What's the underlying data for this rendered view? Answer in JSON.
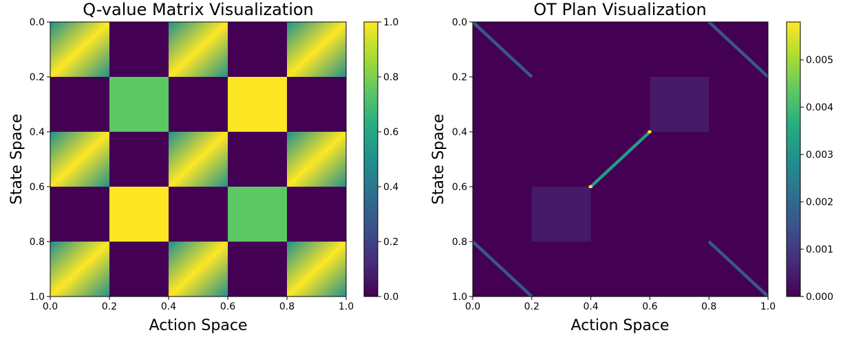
{
  "chart_data": [
    {
      "type": "heatmap",
      "title": "Q-value Matrix Visualization",
      "xlabel": "Action Space",
      "ylabel": "State Space",
      "xlim": [
        0.0,
        1.0
      ],
      "ylim": [
        1.0,
        0.0
      ],
      "xticks": [
        "0.0",
        "0.2",
        "0.4",
        "0.6",
        "0.8",
        "1.0"
      ],
      "yticks": [
        "0.0",
        "0.2",
        "0.4",
        "0.6",
        "0.8",
        "1.0"
      ],
      "colormap": "viridis",
      "colorbar": {
        "min": 0.0,
        "max": 1.0,
        "ticks": [
          "0.0",
          "0.2",
          "0.4",
          "0.6",
          "0.8",
          "1.0"
        ]
      },
      "block_grid": {
        "edges": [
          0.0,
          0.2,
          0.4,
          0.6,
          0.8,
          1.0
        ],
        "rows": [
          [
            {
              "kind": "gradient"
            },
            {
              "kind": "constant",
              "value": 0.0
            },
            {
              "kind": "gradient"
            },
            {
              "kind": "constant",
              "value": 0.0
            },
            {
              "kind": "gradient"
            }
          ],
          [
            {
              "kind": "constant",
              "value": 0.0
            },
            {
              "kind": "constant",
              "value": 0.75
            },
            {
              "kind": "constant",
              "value": 0.0
            },
            {
              "kind": "constant",
              "value": 1.0
            },
            {
              "kind": "constant",
              "value": 0.0
            }
          ],
          [
            {
              "kind": "gradient"
            },
            {
              "kind": "constant",
              "value": 0.0
            },
            {
              "kind": "gradient"
            },
            {
              "kind": "constant",
              "value": 0.0
            },
            {
              "kind": "gradient"
            }
          ],
          [
            {
              "kind": "constant",
              "value": 0.0
            },
            {
              "kind": "constant",
              "value": 1.0
            },
            {
              "kind": "constant",
              "value": 0.0
            },
            {
              "kind": "constant",
              "value": 0.75
            },
            {
              "kind": "constant",
              "value": 0.0
            }
          ],
          [
            {
              "kind": "gradient"
            },
            {
              "kind": "constant",
              "value": 0.0
            },
            {
              "kind": "gradient"
            },
            {
              "kind": "constant",
              "value": 0.0
            },
            {
              "kind": "gradient"
            }
          ]
        ]
      }
    },
    {
      "type": "heatmap",
      "title": "OT Plan Visualization",
      "xlabel": "Action Space",
      "ylabel": "State Space",
      "xlim": [
        0.0,
        1.0
      ],
      "ylim": [
        1.0,
        0.0
      ],
      "xticks": [
        "0.0",
        "0.2",
        "0.4",
        "0.6",
        "0.8",
        "1.0"
      ],
      "yticks": [
        "0.0",
        "0.2",
        "0.4",
        "0.6",
        "0.8",
        "1.0"
      ],
      "colormap": "viridis",
      "colorbar": {
        "min": 0.0,
        "max": 0.0058,
        "ticks": [
          "0.000",
          "0.001",
          "0.002",
          "0.003",
          "0.004",
          "0.005"
        ]
      },
      "background_value": 0.0,
      "blocks": [
        {
          "x": [
            0.6,
            0.8
          ],
          "y": [
            0.2,
            0.4
          ],
          "value": 0.0004
        },
        {
          "x": [
            0.2,
            0.4
          ],
          "y": [
            0.6,
            0.8
          ],
          "value": 0.0004
        }
      ],
      "diagonal_bands": [
        {
          "x": [
            0.0,
            0.2
          ],
          "y": [
            0.0,
            0.2
          ],
          "direction": "down",
          "value": 0.0016
        },
        {
          "x": [
            0.8,
            1.0
          ],
          "y": [
            0.0,
            0.2
          ],
          "direction": "down",
          "value": 0.0016
        },
        {
          "x": [
            0.0,
            0.2
          ],
          "y": [
            0.8,
            1.0
          ],
          "direction": "down",
          "value": 0.0016
        },
        {
          "x": [
            0.8,
            1.0
          ],
          "y": [
            0.8,
            1.0
          ],
          "direction": "down",
          "value": 0.0016
        },
        {
          "x": [
            0.4,
            0.6
          ],
          "y": [
            0.4,
            0.6
          ],
          "direction": "up",
          "value": 0.0032
        }
      ],
      "points": [
        {
          "x": 0.6,
          "y": 0.4,
          "value": 0.0058
        },
        {
          "x": 0.4,
          "y": 0.6,
          "value": 0.0058
        }
      ]
    }
  ]
}
